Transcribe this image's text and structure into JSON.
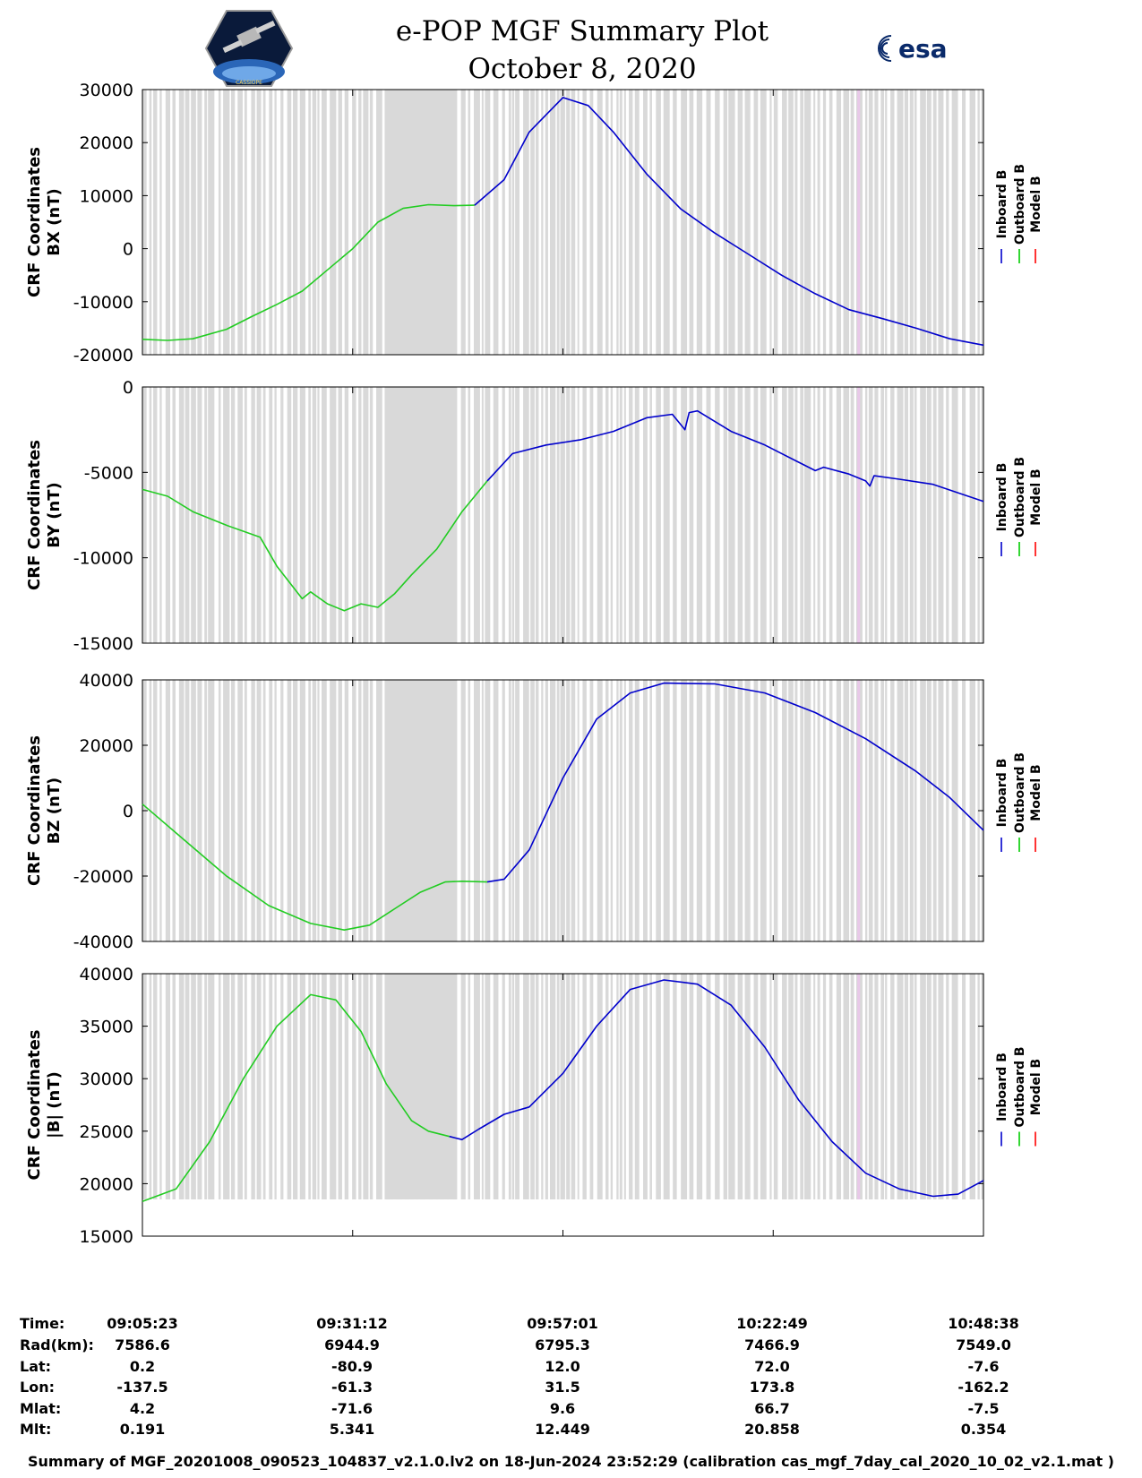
{
  "header": {
    "title_line1": "e-POP MGF Summary Plot",
    "title_line2": "October 8, 2020",
    "left_logo_text": "CASSIOPE",
    "right_logo_text": "esa"
  },
  "legend": {
    "entries": [
      {
        "name": "Inboard B",
        "color": "#0000cc"
      },
      {
        "name": "Outboard B",
        "color": "#00cc00"
      },
      {
        "name": "Model B",
        "color": "#ff0000"
      }
    ]
  },
  "colors": {
    "inboard": "#0000cc",
    "outboard": "#22cc22",
    "model": "#ff0000",
    "shade": "#d9d9d9"
  },
  "chart_data": [
    {
      "type": "line",
      "ylabel_line1": "CRF Coordinates",
      "ylabel_line2": "BX (nT)",
      "ylim": [
        -20000,
        30000
      ],
      "yticks": [
        "30000",
        "20000",
        "10000",
        "0",
        "-10000",
        "-20000"
      ],
      "ytick_values": [
        30000,
        20000,
        10000,
        0,
        -10000,
        -20000
      ],
      "series": [
        {
          "name": "Outboard B",
          "x": [
            0,
            0.03,
            0.06,
            0.1,
            0.13,
            0.16,
            0.19,
            0.22,
            0.25,
            0.28,
            0.31,
            0.34,
            0.37,
            0.395
          ],
          "values": [
            -17100,
            -17300,
            -17000,
            -15200,
            -12800,
            -10500,
            -8000,
            -4000,
            0,
            5000,
            7600,
            8300,
            8100,
            8200
          ]
        },
        {
          "name": "Inboard B",
          "x": [
            0.395,
            0.43,
            0.46,
            0.5,
            0.53,
            0.56,
            0.6,
            0.64,
            0.68,
            0.72,
            0.76,
            0.8,
            0.84,
            0.88,
            0.92,
            0.96,
            1.0
          ],
          "values": [
            8200,
            13000,
            22000,
            28500,
            27000,
            22000,
            14000,
            7500,
            3000,
            -1000,
            -5000,
            -8500,
            -11500,
            -13200,
            -15000,
            -17000,
            -18200
          ]
        }
      ]
    },
    {
      "type": "line",
      "ylabel_line1": "CRF Coordinates",
      "ylabel_line2": "BY (nT)",
      "ylim": [
        -15000,
        0
      ],
      "yticks": [
        "0",
        "-5000",
        "-10000",
        "-15000"
      ],
      "ytick_values": [
        0,
        -5000,
        -10000,
        -15000
      ],
      "series": [
        {
          "name": "Outboard B",
          "x": [
            0,
            0.03,
            0.06,
            0.1,
            0.14,
            0.16,
            0.19,
            0.2,
            0.22,
            0.24,
            0.26,
            0.28,
            0.3,
            0.32,
            0.35,
            0.38,
            0.41
          ],
          "values": [
            -6000,
            -6400,
            -7300,
            -8100,
            -8800,
            -10500,
            -12400,
            -12000,
            -12700,
            -13100,
            -12700,
            -12900,
            -12100,
            -11000,
            -9500,
            -7300,
            -5500
          ]
        },
        {
          "name": "Inboard B",
          "x": [
            0.41,
            0.44,
            0.48,
            0.52,
            0.56,
            0.6,
            0.63,
            0.645,
            0.65,
            0.66,
            0.67,
            0.7,
            0.74,
            0.78,
            0.8,
            0.81,
            0.84,
            0.86,
            0.865,
            0.87,
            0.9,
            0.94,
            1.0
          ],
          "values": [
            -5500,
            -3900,
            -3400,
            -3100,
            -2600,
            -1800,
            -1600,
            -2500,
            -1500,
            -1400,
            -1700,
            -2600,
            -3400,
            -4400,
            -4900,
            -4700,
            -5100,
            -5500,
            -5800,
            -5200,
            -5400,
            -5700,
            -6700
          ]
        }
      ]
    },
    {
      "type": "line",
      "ylabel_line1": "CRF Coordinates",
      "ylabel_line2": "BZ (nT)",
      "ylim": [
        -40000,
        40000
      ],
      "yticks": [
        "40000",
        "20000",
        "0",
        "-20000",
        "-40000"
      ],
      "ytick_values": [
        40000,
        20000,
        0,
        -20000,
        -40000
      ],
      "series": [
        {
          "name": "Outboard B",
          "x": [
            0,
            0.05,
            0.1,
            0.15,
            0.2,
            0.24,
            0.27,
            0.3,
            0.33,
            0.36,
            0.38,
            0.41
          ],
          "values": [
            2000,
            -9000,
            -20000,
            -29000,
            -34500,
            -36500,
            -35000,
            -30000,
            -25000,
            -21800,
            -21600,
            -21800
          ]
        },
        {
          "name": "Inboard B",
          "x": [
            0.41,
            0.43,
            0.46,
            0.5,
            0.54,
            0.58,
            0.62,
            0.68,
            0.74,
            0.8,
            0.86,
            0.92,
            0.96,
            1.0
          ],
          "values": [
            -21800,
            -21000,
            -12000,
            10000,
            28000,
            36000,
            39000,
            38800,
            36000,
            30000,
            22000,
            12000,
            4000,
            -6000
          ]
        }
      ]
    },
    {
      "type": "line",
      "ylabel_line1": "CRF Coordinates",
      "ylabel_line2": "|B| (nT)",
      "ylim": [
        15000,
        40000
      ],
      "yticks": [
        "40000",
        "35000",
        "30000",
        "25000",
        "20000",
        "15000"
      ],
      "ytick_values": [
        40000,
        35000,
        30000,
        25000,
        20000,
        15000
      ],
      "series": [
        {
          "name": "Outboard B",
          "x": [
            0,
            0.04,
            0.08,
            0.12,
            0.16,
            0.2,
            0.23,
            0.26,
            0.29,
            0.32,
            0.34,
            0.365
          ],
          "values": [
            18300,
            19500,
            24000,
            30000,
            35000,
            38000,
            37500,
            34500,
            29500,
            26000,
            25000,
            24500
          ]
        },
        {
          "name": "Inboard B",
          "x": [
            0.365,
            0.38,
            0.4,
            0.43,
            0.46,
            0.5,
            0.54,
            0.58,
            0.62,
            0.66,
            0.7,
            0.74,
            0.78,
            0.82,
            0.86,
            0.9,
            0.94,
            0.97,
            1.0
          ],
          "values": [
            24500,
            24200,
            25200,
            26600,
            27300,
            30500,
            35000,
            38500,
            39400,
            39000,
            37000,
            33000,
            28000,
            24000,
            21000,
            19500,
            18800,
            19000,
            20300
          ]
        }
      ]
    }
  ],
  "xaxis": {
    "row_labels": [
      "Time:",
      "Rad(km):",
      "Lat:",
      "Lon:",
      "Mlat:",
      "Mlt:"
    ],
    "columns": [
      [
        "09:05:23",
        "7586.6",
        "0.2",
        "-137.5",
        "4.2",
        "0.191"
      ],
      [
        "09:31:12",
        "6944.9",
        "-80.9",
        "-61.3",
        "-71.6",
        "5.341"
      ],
      [
        "09:57:01",
        "6795.3",
        "12.0",
        "31.5",
        "9.6",
        "12.449"
      ],
      [
        "10:22:49",
        "7466.9",
        "72.0",
        "173.8",
        "66.7",
        "20.858"
      ],
      [
        "10:48:38",
        "7549.0",
        "-7.6",
        "-162.2",
        "-7.5",
        "0.354"
      ]
    ]
  },
  "footer": {
    "summary": "Summary of MGF_20201008_090523_104837_v2.1.0.lv2 on 18-Jun-2024 23:52:29 (calibration cas_mgf_7day_cal_2020_10_02_v2.1.mat )"
  }
}
